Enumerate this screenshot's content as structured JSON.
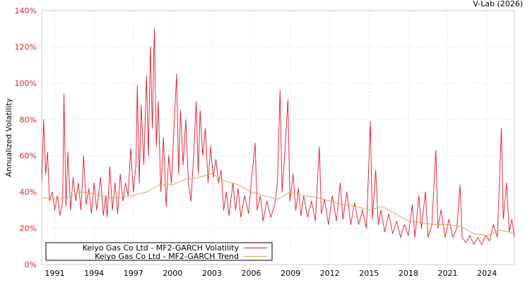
{
  "chart_data": {
    "type": "line",
    "credit": "V-Lab (2026)",
    "ylabel": "Annualized Volatility",
    "xlabel": "",
    "ylim": [
      0,
      140
    ],
    "xlim": [
      1990.0,
      2026.1
    ],
    "yticks": [
      0,
      20,
      40,
      60,
      80,
      100,
      120,
      140
    ],
    "ytick_labels": [
      "0%",
      "20%",
      "40%",
      "60%",
      "80%",
      "100%",
      "120%",
      "140%"
    ],
    "xticks": [
      1991,
      1994,
      1997,
      2000,
      2003,
      2006,
      2009,
      2012,
      2015,
      2018,
      2021,
      2024
    ],
    "xtick_labels": [
      "1991",
      "1994",
      "1997",
      "2000",
      "2003",
      "2006",
      "2009",
      "2012",
      "2015",
      "2018",
      "2021",
      "2024"
    ],
    "grid": true,
    "legend_position": "bottom-left",
    "colors": {
      "volatility": "#e3182d",
      "trend": "#d4aa50",
      "tick_label": "#d62728",
      "grid": "#cccccc"
    },
    "series": [
      {
        "name": "Keiyo Gas Co Ltd - MF2-GARCH Volatility",
        "x": [
          1990.0,
          1990.15,
          1990.3,
          1990.45,
          1990.6,
          1990.8,
          1991.0,
          1991.2,
          1991.4,
          1991.6,
          1991.7,
          1991.85,
          1992.0,
          1992.2,
          1992.4,
          1992.6,
          1992.8,
          1993.0,
          1993.2,
          1993.4,
          1993.6,
          1993.8,
          1994.0,
          1994.2,
          1994.5,
          1994.7,
          1994.9,
          1995.0,
          1995.2,
          1995.4,
          1995.6,
          1995.8,
          1996.0,
          1996.2,
          1996.4,
          1996.6,
          1996.8,
          1997.0,
          1997.2,
          1997.3,
          1997.45,
          1997.6,
          1997.8,
          1998.0,
          1998.15,
          1998.3,
          1998.45,
          1998.6,
          1998.75,
          1998.9,
          1999.1,
          1999.3,
          1999.5,
          1999.7,
          1999.9,
          2000.1,
          2000.3,
          2000.45,
          2000.6,
          2000.8,
          2001.0,
          2001.2,
          2001.4,
          2001.6,
          2001.8,
          2001.95,
          2002.1,
          2002.3,
          2002.5,
          2002.7,
          2002.9,
          2003.1,
          2003.3,
          2003.5,
          2003.7,
          2003.9,
          2004.1,
          2004.3,
          2004.6,
          2004.8,
          2005.0,
          2005.2,
          2005.5,
          2005.8,
          2006.0,
          2006.3,
          2006.45,
          2006.7,
          2006.9,
          2007.2,
          2007.5,
          2007.8,
          2008.0,
          2008.2,
          2008.35,
          2008.55,
          2008.8,
          2008.95,
          2009.2,
          2009.4,
          2009.6,
          2009.8,
          2010.0,
          2010.3,
          2010.6,
          2010.9,
          2011.2,
          2011.35,
          2011.6,
          2011.9,
          2012.2,
          2012.5,
          2012.8,
          2013.0,
          2013.3,
          2013.6,
          2013.9,
          2014.2,
          2014.5,
          2014.8,
          2015.1,
          2015.25,
          2015.5,
          2015.7,
          2015.9,
          2016.2,
          2016.5,
          2016.8,
          2017.1,
          2017.4,
          2017.7,
          2018.0,
          2018.3,
          2018.5,
          2018.8,
          2019.0,
          2019.3,
          2019.5,
          2019.8,
          2020.1,
          2020.25,
          2020.5,
          2020.8,
          2021.1,
          2021.4,
          2021.7,
          2021.95,
          2022.1,
          2022.4,
          2022.7,
          2023.0,
          2023.3,
          2023.6,
          2023.9,
          2024.2,
          2024.5,
          2024.8,
          2025.1,
          2025.25,
          2025.5,
          2025.7,
          2025.9,
          2026.1
        ],
        "y": [
          45,
          80,
          50,
          62,
          35,
          40,
          30,
          38,
          27,
          35,
          94,
          32,
          62,
          30,
          48,
          35,
          45,
          30,
          60,
          33,
          42,
          28,
          45,
          30,
          48,
          27,
          38,
          26,
          54,
          30,
          45,
          28,
          50,
          35,
          45,
          38,
          64,
          40,
          55,
          99,
          45,
          88,
          55,
          104,
          60,
          120,
          75,
          130,
          65,
          90,
          40,
          70,
          32,
          60,
          45,
          75,
          105,
          50,
          85,
          55,
          80,
          45,
          35,
          60,
          90,
          50,
          85,
          60,
          75,
          45,
          65,
          48,
          58,
          45,
          52,
          30,
          40,
          27,
          45,
          30,
          42,
          26,
          38,
          28,
          45,
          67,
          30,
          38,
          24,
          35,
          26,
          33,
          45,
          96,
          40,
          60,
          91,
          35,
          50,
          30,
          42,
          27,
          38,
          26,
          35,
          24,
          65,
          28,
          36,
          22,
          38,
          24,
          45,
          25,
          40,
          22,
          34,
          22,
          30,
          20,
          79,
          25,
          52,
          22,
          30,
          18,
          28,
          17,
          24,
          15,
          22,
          16,
          33,
          15,
          38,
          20,
          40,
          15,
          22,
          63,
          20,
          30,
          15,
          25,
          15,
          20,
          44,
          15,
          12,
          16,
          11,
          15,
          11,
          16,
          13,
          22,
          15,
          75,
          25,
          45,
          18,
          25,
          15
        ]
      },
      {
        "name": "Keiyo Gas Co Ltd - MF2-GARCH Trend",
        "x": [
          1990.0,
          1991.0,
          1992.0,
          1993.0,
          1994.0,
          1995.0,
          1996.0,
          1997.0,
          1998.0,
          1999.0,
          2000.0,
          2001.0,
          2002.0,
          2003.0,
          2004.0,
          2005.0,
          2006.0,
          2007.0,
          2008.0,
          2009.0,
          2010.0,
          2011.0,
          2012.0,
          2013.0,
          2014.0,
          2015.0,
          2016.0,
          2017.0,
          2018.0,
          2019.0,
          2020.0,
          2021.0,
          2022.0,
          2023.0,
          2024.0,
          2025.0,
          2026.1
        ],
        "y": [
          37,
          36,
          37,
          40,
          39,
          37,
          37,
          38,
          40,
          44,
          44,
          47,
          48,
          50,
          46,
          44,
          40,
          38,
          36,
          40,
          38,
          37,
          35,
          33,
          32,
          30,
          32,
          28,
          24,
          23,
          22,
          22,
          21,
          17,
          16,
          19,
          17
        ]
      }
    ]
  }
}
